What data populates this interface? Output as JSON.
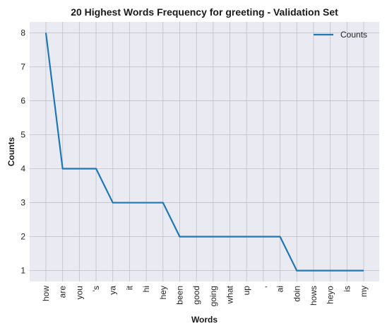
{
  "chart_data": {
    "type": "line",
    "title": "20 Highest Words Frequency for greeting - Validation Set",
    "xlabel": "Words",
    "ylabel": "Counts",
    "categories": [
      "how",
      "are",
      "you",
      "'s",
      "ya",
      "it",
      "hi",
      "hey",
      "been",
      "good",
      "going",
      "what",
      "up",
      ",",
      "ai",
      "doin",
      "hows",
      "heyo",
      "is",
      "my"
    ],
    "series": [
      {
        "name": "Counts",
        "values": [
          8,
          4,
          4,
          4,
          3,
          3,
          3,
          3,
          2,
          2,
          2,
          2,
          2,
          2,
          2,
          1,
          1,
          1,
          1,
          1
        ],
        "color": "#1f77b4"
      }
    ],
    "yticks": [
      1,
      2,
      3,
      4,
      5,
      6,
      7,
      8
    ],
    "ylim": [
      0.68,
      8.32
    ],
    "grid": true,
    "legend": "top-right",
    "background": "#eaeaf2",
    "grid_color": "#c0c0c8"
  }
}
